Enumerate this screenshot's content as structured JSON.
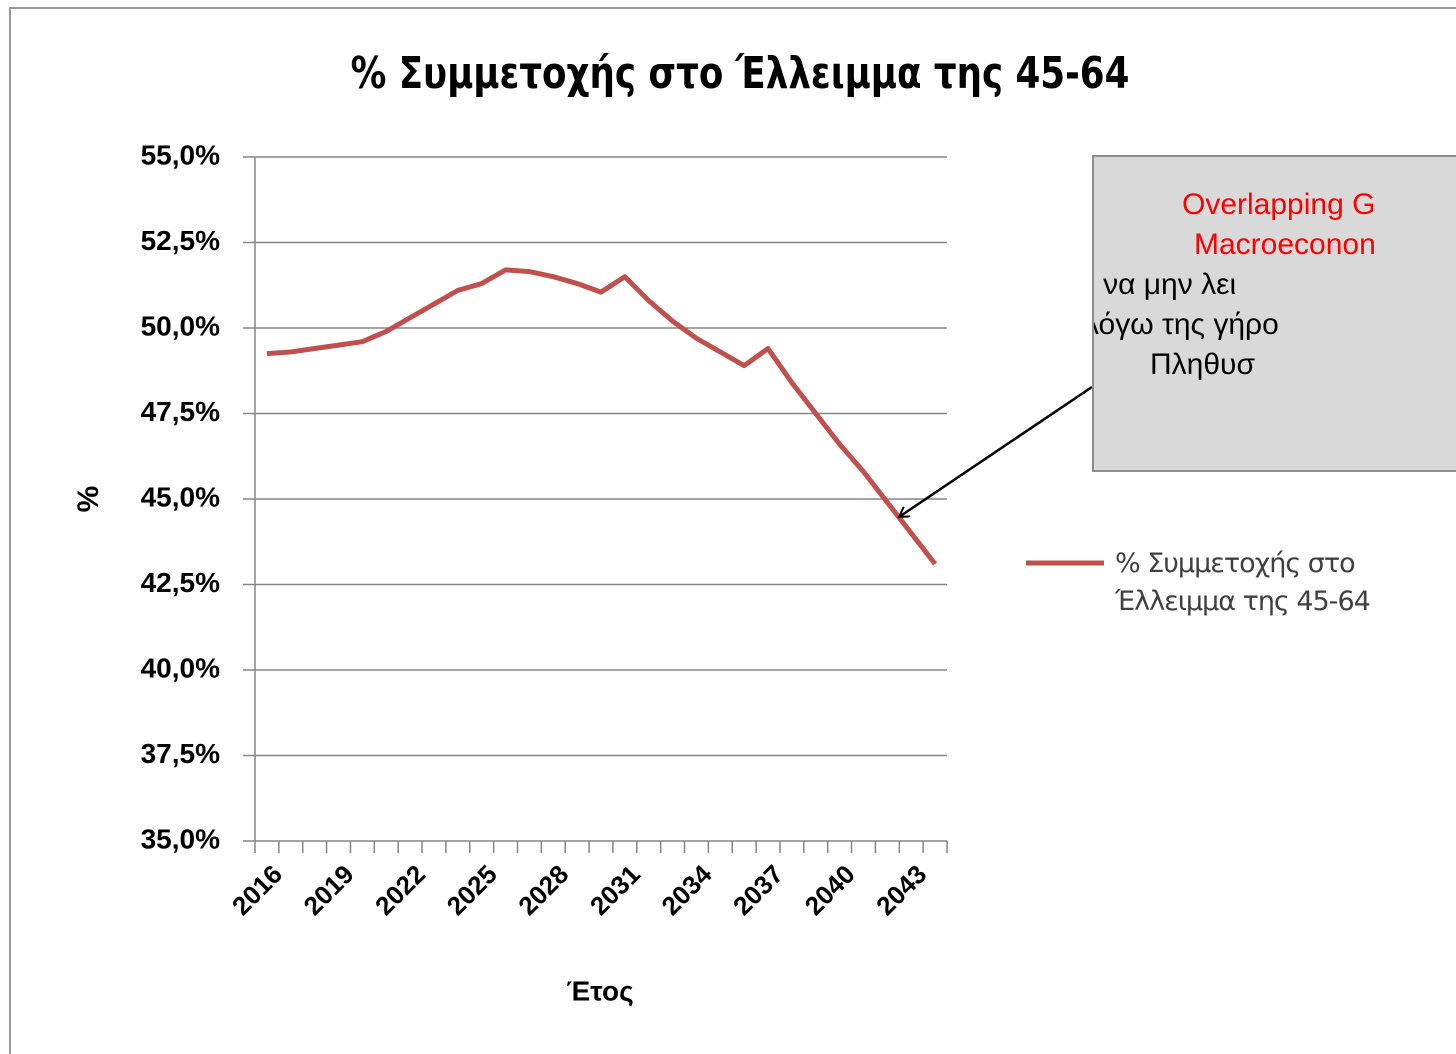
{
  "chart_data": {
    "type": "line",
    "title": "% Συμμετοχής στο Έλλειμμα της 45-64",
    "x_label": "Έτος",
    "y_label": "%",
    "categories": [
      "2016",
      null,
      null,
      "2019",
      null,
      null,
      "2022",
      null,
      null,
      "2025",
      null,
      null,
      "2028",
      null,
      null,
      "2031",
      null,
      null,
      "2034",
      null,
      null,
      "2037",
      null,
      null,
      "2040",
      null,
      null,
      "2043",
      null
    ],
    "series": [
      {
        "name": "% Συμμετοχής στο Έλλειμμα της 45-64",
        "color": "#c0504d",
        "values": [
          49.25,
          49.3,
          49.4,
          49.5,
          49.6,
          49.9,
          50.3,
          50.7,
          51.1,
          51.3,
          51.7,
          51.65,
          51.5,
          51.3,
          51.05,
          51.5,
          50.8,
          50.2,
          49.7,
          49.3,
          48.9,
          49.4,
          48.4,
          47.5,
          46.6,
          45.8,
          44.9,
          44.0,
          43.1
        ]
      }
    ],
    "ylim": [
      35,
      55
    ],
    "yticks": [
      {
        "value": 35,
        "label": "35,0%"
      },
      {
        "value": 37.5,
        "label": "37,5%"
      },
      {
        "value": 40,
        "label": "40,0%"
      },
      {
        "value": 42.5,
        "label": "42,5%"
      },
      {
        "value": 45,
        "label": "45,0%"
      },
      {
        "value": 47.5,
        "label": "47,5%"
      },
      {
        "value": 50,
        "label": "50,0%"
      },
      {
        "value": 52.5,
        "label": "52,5%"
      },
      {
        "value": 55,
        "label": "55,0%"
      }
    ],
    "grid": true,
    "legend": "right",
    "annotation": {
      "lines": [
        "Overlapping G",
        "Macroeconon",
        "Αρχίζει να μην λει",
        "λόγω της γήρο",
        "Πληθυσ"
      ]
    }
  }
}
